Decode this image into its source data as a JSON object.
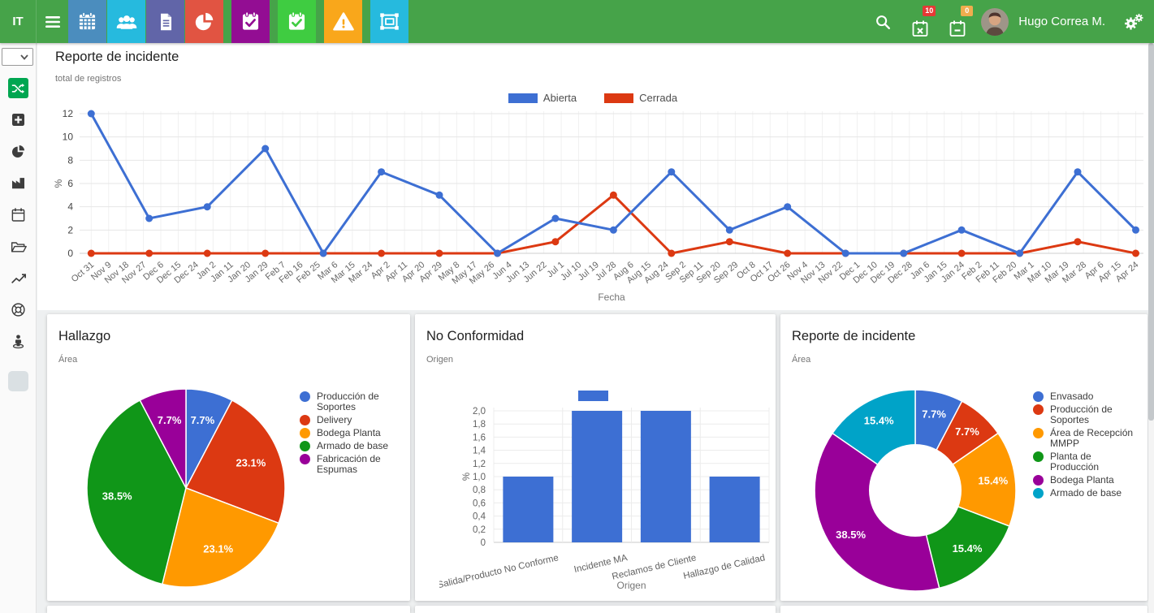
{
  "navbar": {
    "logo": "IT",
    "bg_color": "#46a349",
    "tiles": [
      {
        "icon": "calendar-grid",
        "color": "#4b8dbe"
      },
      {
        "icon": "users",
        "color": "#26bade"
      },
      {
        "icon": "document",
        "color": "#6165a8"
      },
      {
        "icon": "pie-chart",
        "color": "#e15442"
      },
      {
        "icon": "calendar-check",
        "color": "#930d93"
      },
      {
        "icon": "calendar-check",
        "color": "#3fcc41"
      },
      {
        "icon": "warning",
        "color": "#f9a71b"
      },
      {
        "icon": "object-group",
        "color": "#26bade"
      }
    ],
    "badges": {
      "overdue": "10",
      "overdue_color": "#e53935",
      "pending": "0",
      "pending_color": "#f0ad4e"
    },
    "user_name": "Hugo Correa M."
  },
  "sidebar": {
    "active_color": "#00a651",
    "items": [
      "shuffle",
      "plus-square",
      "pie-chart",
      "industry",
      "calendar",
      "folder-open",
      "line-chart",
      "life-ring",
      "street-view"
    ]
  },
  "main_chart": {
    "type": "line",
    "title": "Reporte de incidente",
    "subtitle": "total de registros",
    "xlabel": "Fecha",
    "ylabel": "%",
    "ylim": [
      0,
      12
    ],
    "y_ticks": [
      0,
      2,
      4,
      6,
      8,
      10,
      12
    ],
    "x_tick_step_days": 9,
    "x_tick_labels": [
      "Oct 31",
      "Nov 9",
      "Nov 18",
      "Nov 27",
      "Dec 6",
      "Dec 15",
      "Dec 24",
      "Jan 2",
      "Jan 11",
      "Jan 20",
      "Jan 29",
      "Feb 7",
      "Feb 16",
      "Feb 25",
      "Mar 6",
      "Mar 15",
      "Mar 24",
      "Apr 2",
      "Apr 11",
      "Apr 20",
      "Apr 29",
      "May 8",
      "May 17",
      "May 26",
      "Jun 4",
      "Jun 13",
      "Jun 22",
      "Jul 1",
      "Jul 10",
      "Jul 19",
      "Jul 28",
      "Aug 6",
      "Aug 15",
      "Aug 24",
      "Sep 2",
      "Sep 11",
      "Sep 20",
      "Sep 29",
      "Oct 8",
      "Oct 17",
      "Oct 26",
      "Nov 4",
      "Nov 13",
      "Nov 22",
      "Dec 1",
      "Dec 10",
      "Dec 19",
      "Dec 28",
      "Jan 6",
      "Jan 15",
      "Jan 24",
      "Feb 2",
      "Feb 11",
      "Feb 20",
      "Mar 1",
      "Mar 10",
      "Mar 19",
      "Mar 28",
      "Apr 6",
      "Apr 15",
      "Apr 24"
    ],
    "series": [
      {
        "name": "Abierta",
        "color": "#3d6fd3",
        "points": [
          [
            0,
            12
          ],
          [
            30,
            3
          ],
          [
            60,
            4
          ],
          [
            90,
            9
          ],
          [
            120,
            0
          ],
          [
            150,
            7
          ],
          [
            180,
            5
          ],
          [
            210,
            0
          ],
          [
            240,
            3
          ],
          [
            270,
            2
          ],
          [
            300,
            7
          ],
          [
            330,
            2
          ],
          [
            360,
            4
          ],
          [
            390,
            0
          ],
          [
            420,
            0
          ],
          [
            450,
            2
          ],
          [
            480,
            0
          ],
          [
            510,
            7
          ],
          [
            540,
            2
          ]
        ]
      },
      {
        "name": "Cerrada",
        "color": "#dc3912",
        "points": [
          [
            0,
            0
          ],
          [
            30,
            0
          ],
          [
            60,
            0
          ],
          [
            90,
            0
          ],
          [
            120,
            0
          ],
          [
            150,
            0
          ],
          [
            180,
            0
          ],
          [
            210,
            0
          ],
          [
            240,
            1
          ],
          [
            270,
            5
          ],
          [
            300,
            0
          ],
          [
            330,
            1
          ],
          [
            360,
            0
          ],
          [
            390,
            0
          ],
          [
            420,
            0
          ],
          [
            450,
            0
          ],
          [
            480,
            0
          ],
          [
            510,
            1
          ],
          [
            540,
            0
          ]
        ]
      }
    ]
  },
  "cards": [
    {
      "title": "Hallazgo",
      "subtitle": "Área",
      "type": "pie",
      "slices": [
        {
          "label": "Producción de Soportes",
          "value": 7.7,
          "color": "#3d6fd3"
        },
        {
          "label": "Delivery",
          "value": 23.1,
          "color": "#dc3912"
        },
        {
          "label": "Bodega Planta",
          "value": 23.1,
          "color": "#ff9900"
        },
        {
          "label": "Armado de base",
          "value": 38.5,
          "color": "#109618"
        },
        {
          "label": "Fabricación de Espumas",
          "value": 7.7,
          "color": "#990099"
        }
      ]
    },
    {
      "title": "No Conformidad",
      "subtitle": "Origen",
      "type": "bar",
      "bar_color": "#3d6fd3",
      "xlabel": "Origen",
      "ylabel": "%",
      "ylim": [
        0,
        2
      ],
      "y_tick_labels": [
        "0",
        "0,2",
        "0,4",
        "0,6",
        "0,8",
        "1,0",
        "1,2",
        "1,4",
        "1,6",
        "1,8",
        "2,0"
      ],
      "categories": [
        "Salida/Producto No Conforme",
        "Incidente MA",
        "Reclamos de Cliente",
        "Hallazgo de Calidad"
      ],
      "values": [
        1,
        2,
        2,
        1
      ]
    },
    {
      "title": "Reporte de incidente",
      "subtitle": "Área",
      "type": "donut",
      "slices": [
        {
          "label": "Envasado",
          "value": 7.7,
          "color": "#3d6fd3"
        },
        {
          "label": "Producción de Soportes",
          "value": 7.7,
          "color": "#dc3912"
        },
        {
          "label": "Área de Recepción MMPP",
          "value": 15.4,
          "color": "#ff9900"
        },
        {
          "label": "Planta de Producción",
          "value": 15.4,
          "color": "#109618"
        },
        {
          "label": "Bodega Planta",
          "value": 38.5,
          "color": "#990099"
        },
        {
          "label": "Armado de base",
          "value": 15.4,
          "color": "#00a3c8"
        }
      ]
    }
  ]
}
